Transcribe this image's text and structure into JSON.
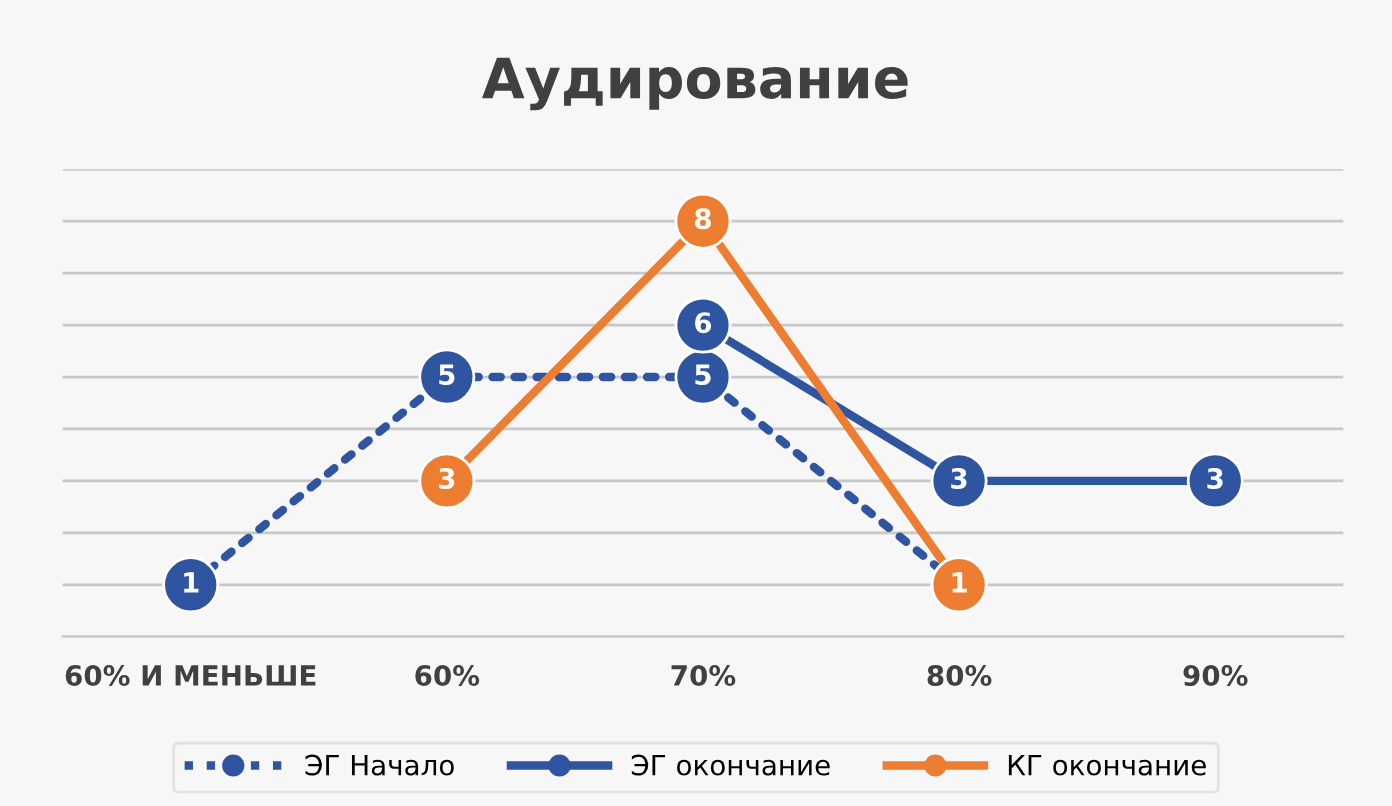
{
  "chart_data": {
    "type": "line",
    "title": "Аудирование",
    "categories": [
      "60% И МЕНЬШЕ",
      "60%",
      "70%",
      "80%",
      "90%"
    ],
    "series": [
      {
        "name": "ЭГ Начало",
        "color": "#2f55a0",
        "values": [
          1,
          5,
          5,
          1,
          null
        ],
        "value_labels": [
          "1",
          "5",
          "5",
          null,
          null
        ],
        "line_style": "dotted"
      },
      {
        "name": "ЭГ окончание",
        "color": "#2f55a0",
        "values": [
          null,
          null,
          6,
          3,
          3
        ],
        "line_style": "solid"
      },
      {
        "name": "КГ окончание",
        "color": "#ed7d31",
        "values": [
          null,
          3,
          8,
          1,
          null
        ],
        "line_style": "solid"
      }
    ],
    "ylim": [
      0,
      9
    ],
    "yticks": [
      {
        "value": 0,
        "label": null
      },
      {
        "value": 1,
        "label": null
      },
      {
        "value": 2,
        "label": null
      },
      {
        "value": 3,
        "label": null
      },
      {
        "value": 4,
        "label": null
      },
      {
        "value": 5,
        "label": null
      },
      {
        "value": 6,
        "label": null
      },
      {
        "value": 7,
        "label": null
      },
      {
        "value": 8,
        "label": null
      },
      {
        "value": 9,
        "label": null
      }
    ],
    "tick_labels": "x",
    "grid": "y",
    "legend": "bottom",
    "marker": "circle",
    "data_labels": true
  }
}
